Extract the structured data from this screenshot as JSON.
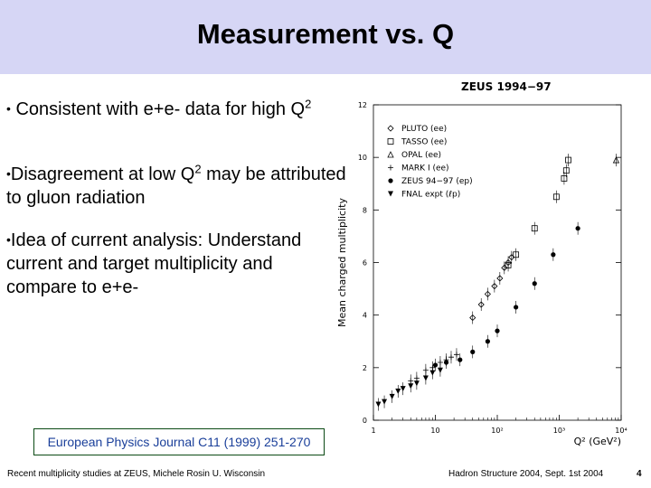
{
  "slide": {
    "title": "Measurement vs. Q",
    "bullets": [
      {
        "text": "Consistent with e+e- data for high Q",
        "sup": "2",
        "tail": ""
      },
      {
        "text": "Disagreement at low Q",
        "sup": "2",
        "tail": " may be attributed to gluon radiation"
      },
      {
        "text": "Idea of current analysis: Understand current and target multiplicity and compare to e+e-",
        "sup": "",
        "tail": ""
      }
    ],
    "bullet_symbol": "•",
    "reference": "European Physics Journal C11 (1999) 251-270",
    "footer_left": "Recent multiplicity studies at ZEUS, Michele Rosin U. Wisconsin",
    "footer_right": "Hadron Structure 2004, Sept. 1st 2004",
    "page_number": "4",
    "header_color": "#d6d6f5"
  },
  "chart_data": {
    "type": "scatter",
    "title": "ZEUS 1994−97",
    "ylabel": "Mean charged multiplicity",
    "xlabel": "Q² (GeV²)",
    "xscale": "log",
    "xlim": [
      1,
      10000
    ],
    "ylim": [
      0,
      12
    ],
    "x_tick_labels": [
      "1",
      "10",
      "10²",
      "10³",
      "10⁴"
    ],
    "y_tick_labels": [
      "0",
      "2",
      "4",
      "6",
      "8",
      "10",
      "12"
    ],
    "legend_position": "top-left",
    "series": [
      {
        "name": "PLUTO (ee)",
        "marker": "diamond",
        "points": [
          [
            40,
            3.9
          ],
          [
            55,
            4.4
          ],
          [
            70,
            4.8
          ],
          [
            90,
            5.1
          ],
          [
            110,
            5.4
          ],
          [
            130,
            5.8
          ],
          [
            150,
            6.0
          ],
          [
            170,
            6.2
          ]
        ]
      },
      {
        "name": "TASSO (ee)",
        "marker": "square",
        "points": [
          [
            150,
            5.9
          ],
          [
            200,
            6.3
          ],
          [
            400,
            7.3
          ],
          [
            900,
            8.5
          ],
          [
            1200,
            9.2
          ],
          [
            1300,
            9.5
          ],
          [
            1400,
            9.9
          ]
        ]
      },
      {
        "name": "OPAL (ee)",
        "marker": "triangle",
        "points": [
          [
            8300,
            9.9
          ]
        ]
      },
      {
        "name": "MARK I (ee)",
        "marker": "cross",
        "points": [
          [
            4,
            1.5
          ],
          [
            5,
            1.6
          ],
          [
            7,
            1.9
          ],
          [
            9,
            2.0
          ],
          [
            12,
            2.2
          ],
          [
            15,
            2.3
          ],
          [
            18,
            2.4
          ],
          [
            22,
            2.5
          ]
        ]
      },
      {
        "name": "ZEUS 94−97 (ep)",
        "marker": "dot",
        "points": [
          [
            10,
            2.1
          ],
          [
            15,
            2.2
          ],
          [
            25,
            2.3
          ],
          [
            40,
            2.6
          ],
          [
            70,
            3.0
          ],
          [
            100,
            3.4
          ],
          [
            200,
            4.3
          ],
          [
            400,
            5.2
          ],
          [
            800,
            6.3
          ],
          [
            2000,
            7.3
          ]
        ]
      },
      {
        "name": "FNAL expt (ℓp)",
        "marker": "triangle-down",
        "points": [
          [
            1.2,
            0.6
          ],
          [
            1.5,
            0.7
          ],
          [
            2,
            0.9
          ],
          [
            2.5,
            1.1
          ],
          [
            3,
            1.2
          ],
          [
            4,
            1.3
          ],
          [
            5,
            1.4
          ],
          [
            7,
            1.6
          ],
          [
            9,
            1.8
          ],
          [
            12,
            1.9
          ]
        ]
      }
    ]
  }
}
